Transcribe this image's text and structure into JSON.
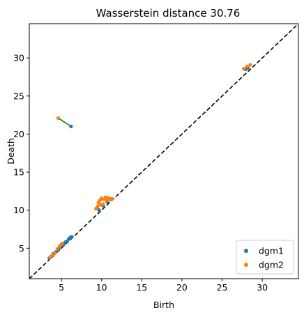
{
  "chart_data": {
    "type": "scatter",
    "title": "Wasserstein distance 30.76",
    "xlabel": "Birth",
    "ylabel": "Death",
    "xlim": [
      1.0,
      34.5
    ],
    "ylim": [
      1.0,
      34.5
    ],
    "xticks": [
      5,
      10,
      15,
      20,
      25,
      30
    ],
    "yticks": [
      5,
      10,
      15,
      20,
      25,
      30
    ],
    "grid": false,
    "legend_position": "bottom-right",
    "diagonal": {
      "style": "dashed",
      "color": "#000000"
    },
    "matching_color": "#008000",
    "series": [
      {
        "name": "dgm1",
        "color": "#1f77b4",
        "points": [
          [
            3.5,
            3.7
          ],
          [
            3.7,
            3.9
          ],
          [
            3.9,
            4.0
          ],
          [
            4.0,
            4.3
          ],
          [
            4.3,
            4.5
          ],
          [
            4.5,
            4.8
          ],
          [
            4.7,
            5.0
          ],
          [
            4.9,
            5.2
          ],
          [
            5.0,
            5.5
          ],
          [
            5.2,
            5.4
          ],
          [
            5.3,
            5.6
          ],
          [
            5.5,
            5.8
          ],
          [
            5.7,
            5.9
          ],
          [
            5.9,
            6.2
          ],
          [
            6.1,
            6.4
          ],
          [
            6.3,
            6.5
          ],
          [
            6.2,
            21.0
          ],
          [
            9.7,
            10.0
          ],
          [
            10.2,
            10.6
          ],
          [
            10.7,
            11.1
          ],
          [
            11.0,
            11.5
          ],
          [
            27.9,
            28.5
          ],
          [
            28.2,
            28.7
          ]
        ]
      },
      {
        "name": "dgm2",
        "color": "#ff7f0e",
        "points": [
          [
            3.6,
            3.8
          ],
          [
            3.9,
            4.1
          ],
          [
            4.2,
            4.4
          ],
          [
            4.5,
            4.9
          ],
          [
            4.8,
            5.3
          ],
          [
            5.1,
            5.6
          ],
          [
            4.6,
            22.1
          ],
          [
            9.3,
            10.2
          ],
          [
            9.5,
            10.5
          ],
          [
            9.6,
            11.0
          ],
          [
            9.8,
            11.3
          ],
          [
            10.0,
            11.6
          ],
          [
            10.2,
            10.8
          ],
          [
            10.3,
            11.4
          ],
          [
            10.5,
            11.7
          ],
          [
            10.7,
            11.3
          ],
          [
            10.9,
            11.6
          ],
          [
            11.1,
            11.4
          ],
          [
            11.3,
            11.5
          ],
          [
            9.9,
            10.7
          ],
          [
            27.7,
            28.6
          ],
          [
            28.1,
            28.9
          ],
          [
            28.5,
            29.1
          ]
        ]
      }
    ],
    "matchings": [
      {
        "from": [
          6.2,
          21.0
        ],
        "to": [
          4.6,
          22.1
        ]
      },
      {
        "from": [
          3.5,
          3.7
        ],
        "to": [
          3.6,
          3.8
        ]
      },
      {
        "from": [
          4.5,
          4.8
        ],
        "to": [
          4.5,
          4.9
        ]
      },
      {
        "from": [
          5.0,
          5.5
        ],
        "to": [
          5.1,
          5.6
        ]
      },
      {
        "from": [
          9.7,
          10.0
        ],
        "to": [
          9.5,
          10.5
        ]
      },
      {
        "from": [
          10.2,
          10.6
        ],
        "to": [
          10.2,
          10.8
        ]
      },
      {
        "from": [
          10.7,
          11.1
        ],
        "to": [
          10.7,
          11.3
        ]
      },
      {
        "from": [
          11.0,
          11.5
        ],
        "to": [
          11.1,
          11.4
        ]
      },
      {
        "from": [
          27.9,
          28.5
        ],
        "to": [
          27.7,
          28.6
        ]
      },
      {
        "from": [
          28.2,
          28.7
        ],
        "to": [
          28.1,
          28.9
        ]
      }
    ]
  }
}
